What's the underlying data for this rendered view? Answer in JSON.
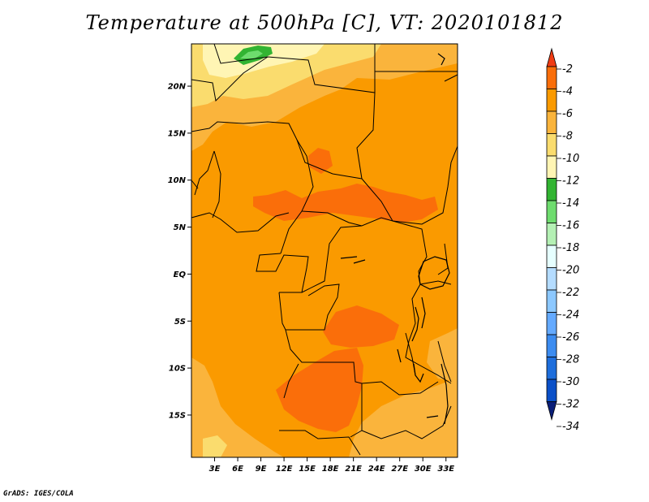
{
  "title": "Temperature at 500hPa [C], VT: 2020101812",
  "credit": "GrADS: IGES/COLA",
  "map": {
    "lat_labels": [
      "20N",
      "15N",
      "10N",
      "5N",
      "EQ",
      "5S",
      "10S",
      "15S"
    ],
    "lon_labels": [
      "3E",
      "6E",
      "9E",
      "12E",
      "15E",
      "18E",
      "21E",
      "24E",
      "27E",
      "30E",
      "33E"
    ],
    "lat_values": [
      20,
      15,
      10,
      5,
      0,
      -5,
      -10,
      -15
    ],
    "lon_values": [
      3,
      6,
      9,
      12,
      15,
      18,
      21,
      24,
      27,
      30,
      33
    ],
    "lat_range": [
      -19.5,
      24.5
    ],
    "lon_range": [
      0,
      34.5
    ]
  },
  "colorbar": {
    "labels": [
      "-2",
      "-4",
      "-6",
      "-8",
      "-10",
      "-12",
      "-14",
      "-16",
      "-18",
      "-20",
      "-22",
      "-24",
      "-26",
      "-28",
      "-30",
      "-32",
      "-34"
    ],
    "colors": [
      "#f03c14",
      "#fa6e0a",
      "#fa9a00",
      "#fab43c",
      "#fadc6e",
      "#fff5b4",
      "#32b432",
      "#6edc6e",
      "#b4f0b4",
      "#e6ffff",
      "#b4dcff",
      "#8cc8ff",
      "#64aaff",
      "#3c8cf0",
      "#1e6edc",
      "#0a50c8",
      "#0a1e78"
    ]
  },
  "field_colors": {
    "base": "#fa9a00",
    "warm": "#fa6e0a",
    "cool": "#fab43c",
    "cooler": "#fadc6e",
    "coolest": "#fff5b4",
    "green": "#32b432",
    "light_green": "#6edc6e"
  }
}
